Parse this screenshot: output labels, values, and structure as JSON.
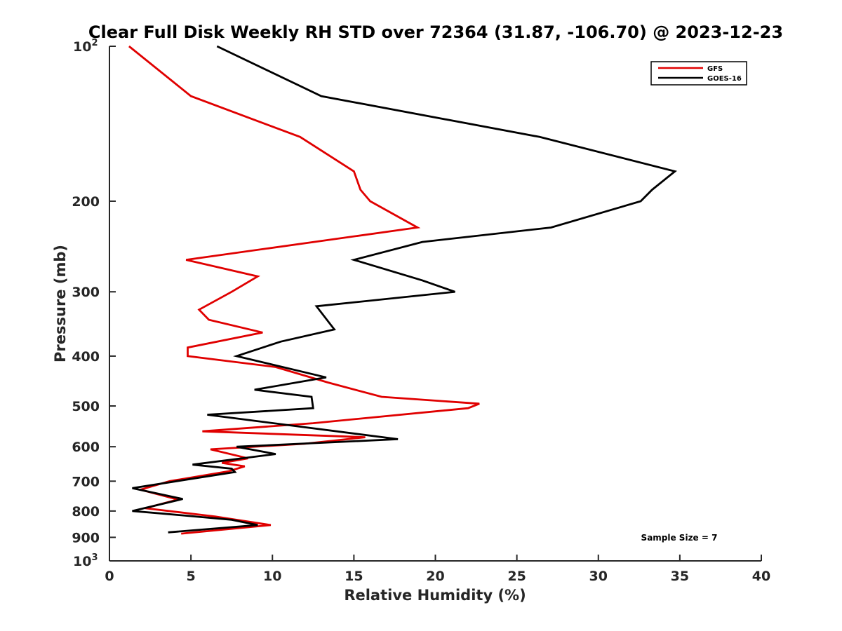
{
  "chart_data": {
    "type": "line",
    "title": "Clear Full Disk Weekly RH STD over 72364 (31.87, -106.70) @ 2023-12-23",
    "xlabel": "Relative Humidity (%)",
    "ylabel": "Pressure (mb)",
    "xlim": [
      0,
      40
    ],
    "ylim": [
      100,
      1000
    ],
    "y_scale": "log",
    "y_reversed": true,
    "x_ticks": [
      "0",
      "5",
      "10",
      "15",
      "20",
      "25",
      "30",
      "35",
      "40"
    ],
    "y_ticks": [
      {
        "value": 100,
        "label": "10",
        "sup": "2"
      },
      {
        "value": 200,
        "label": "200"
      },
      {
        "value": 300,
        "label": "300"
      },
      {
        "value": 400,
        "label": "400"
      },
      {
        "value": 500,
        "label": "500"
      },
      {
        "value": 600,
        "label": "600"
      },
      {
        "value": 700,
        "label": "700"
      },
      {
        "value": 800,
        "label": "800"
      },
      {
        "value": 900,
        "label": "900"
      },
      {
        "value": 1000,
        "label": "10",
        "sup": "3"
      }
    ],
    "legend_position": "top-right",
    "annotation": "Sample Size = 7",
    "series": [
      {
        "name": "GFS",
        "color": "#e00000",
        "points": [
          [
            1.2,
            100
          ],
          [
            5.0,
            125
          ],
          [
            11.7,
            150
          ],
          [
            15.0,
            175
          ],
          [
            15.4,
            190
          ],
          [
            16.0,
            200
          ],
          [
            18.9,
            225
          ],
          [
            4.7,
            260
          ],
          [
            9.1,
            280
          ],
          [
            7.5,
            300
          ],
          [
            5.5,
            325
          ],
          [
            6.1,
            340
          ],
          [
            9.4,
            360
          ],
          [
            4.8,
            385
          ],
          [
            4.8,
            400
          ],
          [
            10.2,
            420
          ],
          [
            13.4,
            450
          ],
          [
            16.7,
            480
          ],
          [
            22.7,
            495
          ],
          [
            22.0,
            505
          ],
          [
            12.5,
            540
          ],
          [
            5.7,
            560
          ],
          [
            15.7,
            575
          ],
          [
            12.0,
            592
          ],
          [
            6.2,
            607
          ],
          [
            8.5,
            632
          ],
          [
            6.9,
            645
          ],
          [
            8.3,
            655
          ],
          [
            7.3,
            670
          ],
          [
            3.7,
            700
          ],
          [
            1.9,
            727
          ],
          [
            4.2,
            760
          ],
          [
            2.2,
            790
          ],
          [
            6.5,
            820
          ],
          [
            9.9,
            852
          ],
          [
            4.4,
            885
          ]
        ]
      },
      {
        "name": "GOES-16",
        "color": "#000000",
        "points": [
          [
            6.6,
            100
          ],
          [
            13.0,
            125
          ],
          [
            26.4,
            150
          ],
          [
            34.7,
            175
          ],
          [
            33.3,
            190
          ],
          [
            32.6,
            200
          ],
          [
            27.1,
            225
          ],
          [
            19.2,
            240
          ],
          [
            15.0,
            260
          ],
          [
            19.2,
            285
          ],
          [
            21.2,
            300
          ],
          [
            12.7,
            320
          ],
          [
            13.5,
            345
          ],
          [
            13.8,
            355
          ],
          [
            10.5,
            375
          ],
          [
            7.8,
            400
          ],
          [
            13.3,
            440
          ],
          [
            8.9,
            465
          ],
          [
            12.4,
            480
          ],
          [
            12.5,
            505
          ],
          [
            6.0,
            520
          ],
          [
            17.7,
            580
          ],
          [
            7.8,
            600
          ],
          [
            10.2,
            620
          ],
          [
            5.1,
            650
          ],
          [
            7.5,
            662
          ],
          [
            7.7,
            672
          ],
          [
            1.4,
            722
          ],
          [
            4.5,
            758
          ],
          [
            1.4,
            800
          ],
          [
            3.4,
            810
          ],
          [
            7.5,
            832
          ],
          [
            9.1,
            852
          ],
          [
            3.6,
            880
          ]
        ]
      }
    ]
  }
}
